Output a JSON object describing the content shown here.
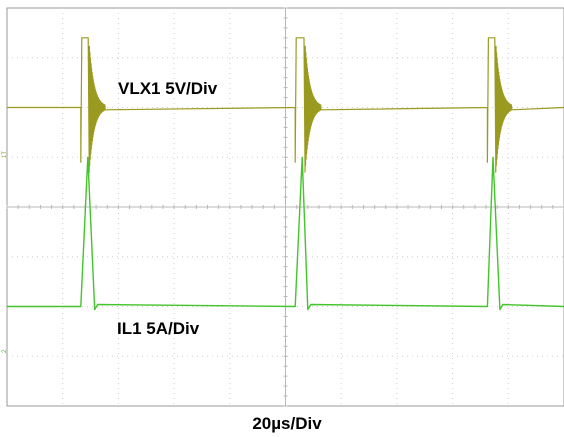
{
  "chart_data": {
    "type": "line",
    "title": "",
    "xlabel": "20µs/Div",
    "ylabel": "",
    "grid": true,
    "grid_divisions": {
      "horizontal": 10,
      "vertical": 8
    },
    "xlim": [
      0,
      200
    ],
    "x_unit": "µs",
    "channels": [
      {
        "id": "ch1",
        "label": "VLX1 5V/Div",
        "marker_text": "1T",
        "color": "#9a9a20",
        "scale": "5V/Div",
        "baseline_div": 6,
        "pulses_us": [
          {
            "start": 26.5,
            "end": 29.5
          },
          {
            "start": 103.5,
            "end": 107
          },
          {
            "start": 172.5,
            "end": 175.5
          }
        ],
        "high_level_div": 1.4,
        "low_level_div": -1.1
      },
      {
        "id": "ch2",
        "label": "IL1 5A/Div",
        "marker_text": "2",
        "color": "#44c42c",
        "scale": "5A/Div",
        "baseline_div": 2,
        "peaks_us": [
          {
            "start": 26.5,
            "peak": 29,
            "end": 31.5
          },
          {
            "start": 103.5,
            "peak": 106,
            "end": 108
          },
          {
            "start": 172.5,
            "peak": 174.5,
            "end": 177
          }
        ],
        "peak_level_div": 3.0
      }
    ]
  }
}
